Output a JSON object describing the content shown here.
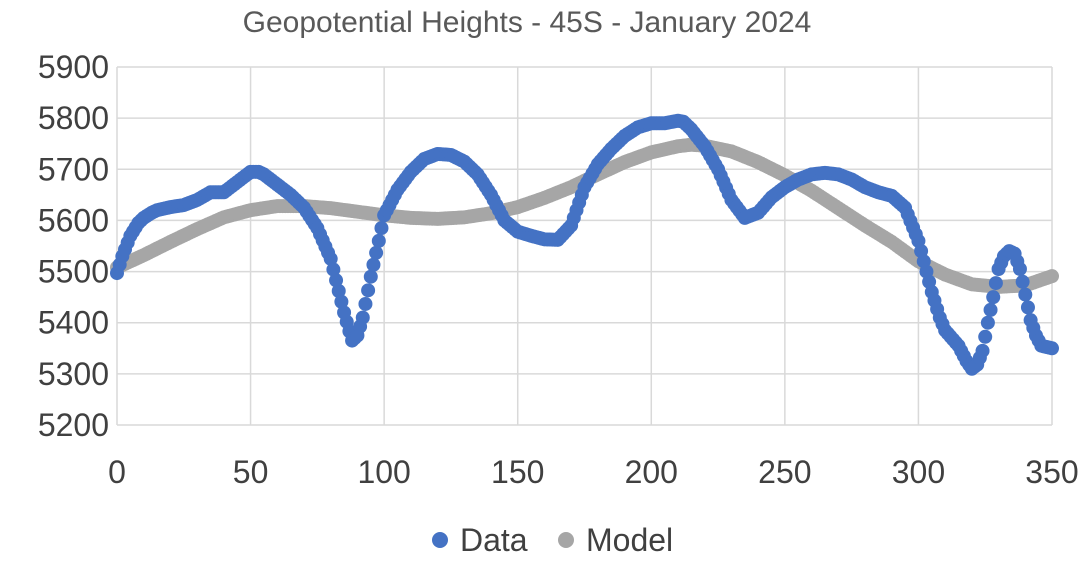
{
  "chart_data": {
    "type": "scatter",
    "title": "Geopotential Heights - 45S - January 2024",
    "xlabel": "",
    "ylabel": "",
    "xlim": [
      0,
      350
    ],
    "ylim": [
      5200,
      5900
    ],
    "x_ticks": [
      "0",
      "50",
      "100",
      "150",
      "200",
      "250",
      "300",
      "350"
    ],
    "y_ticks": [
      "5900",
      "5800",
      "5700",
      "5600",
      "5500",
      "5400",
      "5300",
      "5200"
    ],
    "grid": true,
    "legend_position": "bottom",
    "series": [
      {
        "name": "Data",
        "color": "#4472c4",
        "points": [
          [
            0,
            5497
          ],
          [
            2,
            5530
          ],
          [
            5,
            5570
          ],
          [
            8,
            5595
          ],
          [
            10,
            5605
          ],
          [
            13,
            5615
          ],
          [
            15,
            5620
          ],
          [
            20,
            5626
          ],
          [
            25,
            5630
          ],
          [
            30,
            5640
          ],
          [
            35,
            5655
          ],
          [
            40,
            5655
          ],
          [
            45,
            5675
          ],
          [
            50,
            5695
          ],
          [
            53,
            5695
          ],
          [
            55,
            5690
          ],
          [
            60,
            5670
          ],
          [
            65,
            5650
          ],
          [
            70,
            5625
          ],
          [
            75,
            5585
          ],
          [
            80,
            5525
          ],
          [
            85,
            5420
          ],
          [
            88,
            5365
          ],
          [
            90,
            5375
          ],
          [
            92,
            5410
          ],
          [
            95,
            5490
          ],
          [
            98,
            5560
          ],
          [
            100,
            5610
          ],
          [
            105,
            5660
          ],
          [
            110,
            5695
          ],
          [
            115,
            5720
          ],
          [
            120,
            5730
          ],
          [
            125,
            5728
          ],
          [
            130,
            5715
          ],
          [
            135,
            5690
          ],
          [
            140,
            5650
          ],
          [
            145,
            5600
          ],
          [
            150,
            5578
          ],
          [
            155,
            5570
          ],
          [
            160,
            5563
          ],
          [
            165,
            5562
          ],
          [
            170,
            5590
          ],
          [
            175,
            5665
          ],
          [
            180,
            5710
          ],
          [
            185,
            5740
          ],
          [
            190,
            5765
          ],
          [
            195,
            5782
          ],
          [
            200,
            5790
          ],
          [
            205,
            5790
          ],
          [
            210,
            5795
          ],
          [
            212,
            5793
          ],
          [
            215,
            5778
          ],
          [
            220,
            5745
          ],
          [
            225,
            5700
          ],
          [
            230,
            5640
          ],
          [
            235,
            5605
          ],
          [
            240,
            5615
          ],
          [
            245,
            5645
          ],
          [
            250,
            5665
          ],
          [
            255,
            5680
          ],
          [
            260,
            5690
          ],
          [
            265,
            5693
          ],
          [
            270,
            5690
          ],
          [
            275,
            5680
          ],
          [
            280,
            5665
          ],
          [
            285,
            5655
          ],
          [
            290,
            5648
          ],
          [
            295,
            5625
          ],
          [
            300,
            5560
          ],
          [
            303,
            5500
          ],
          [
            305,
            5460
          ],
          [
            308,
            5410
          ],
          [
            310,
            5385
          ],
          [
            315,
            5355
          ],
          [
            318,
            5325
          ],
          [
            320,
            5310
          ],
          [
            322,
            5318
          ],
          [
            324,
            5345
          ],
          [
            326,
            5400
          ],
          [
            328,
            5450
          ],
          [
            330,
            5505
          ],
          [
            332,
            5530
          ],
          [
            334,
            5540
          ],
          [
            336,
            5535
          ],
          [
            338,
            5505
          ],
          [
            340,
            5455
          ],
          [
            342,
            5405
          ],
          [
            344,
            5375
          ],
          [
            346,
            5355
          ],
          [
            350,
            5350
          ]
        ]
      },
      {
        "name": "Model",
        "color": "#a6a6a6",
        "points": [
          [
            0,
            5508
          ],
          [
            10,
            5532
          ],
          [
            20,
            5558
          ],
          [
            30,
            5583
          ],
          [
            40,
            5606
          ],
          [
            50,
            5620
          ],
          [
            60,
            5628
          ],
          [
            70,
            5628
          ],
          [
            80,
            5624
          ],
          [
            90,
            5617
          ],
          [
            100,
            5610
          ],
          [
            110,
            5605
          ],
          [
            120,
            5603
          ],
          [
            130,
            5606
          ],
          [
            140,
            5614
          ],
          [
            150,
            5626
          ],
          [
            160,
            5644
          ],
          [
            170,
            5665
          ],
          [
            180,
            5690
          ],
          [
            190,
            5714
          ],
          [
            200,
            5733
          ],
          [
            210,
            5745
          ],
          [
            215,
            5748
          ],
          [
            220,
            5746
          ],
          [
            230,
            5735
          ],
          [
            240,
            5714
          ],
          [
            250,
            5688
          ],
          [
            260,
            5658
          ],
          [
            270,
            5624
          ],
          [
            280,
            5590
          ],
          [
            290,
            5558
          ],
          [
            300,
            5520
          ],
          [
            310,
            5494
          ],
          [
            320,
            5475
          ],
          [
            330,
            5470
          ],
          [
            340,
            5473
          ],
          [
            350,
            5491
          ]
        ]
      }
    ]
  }
}
